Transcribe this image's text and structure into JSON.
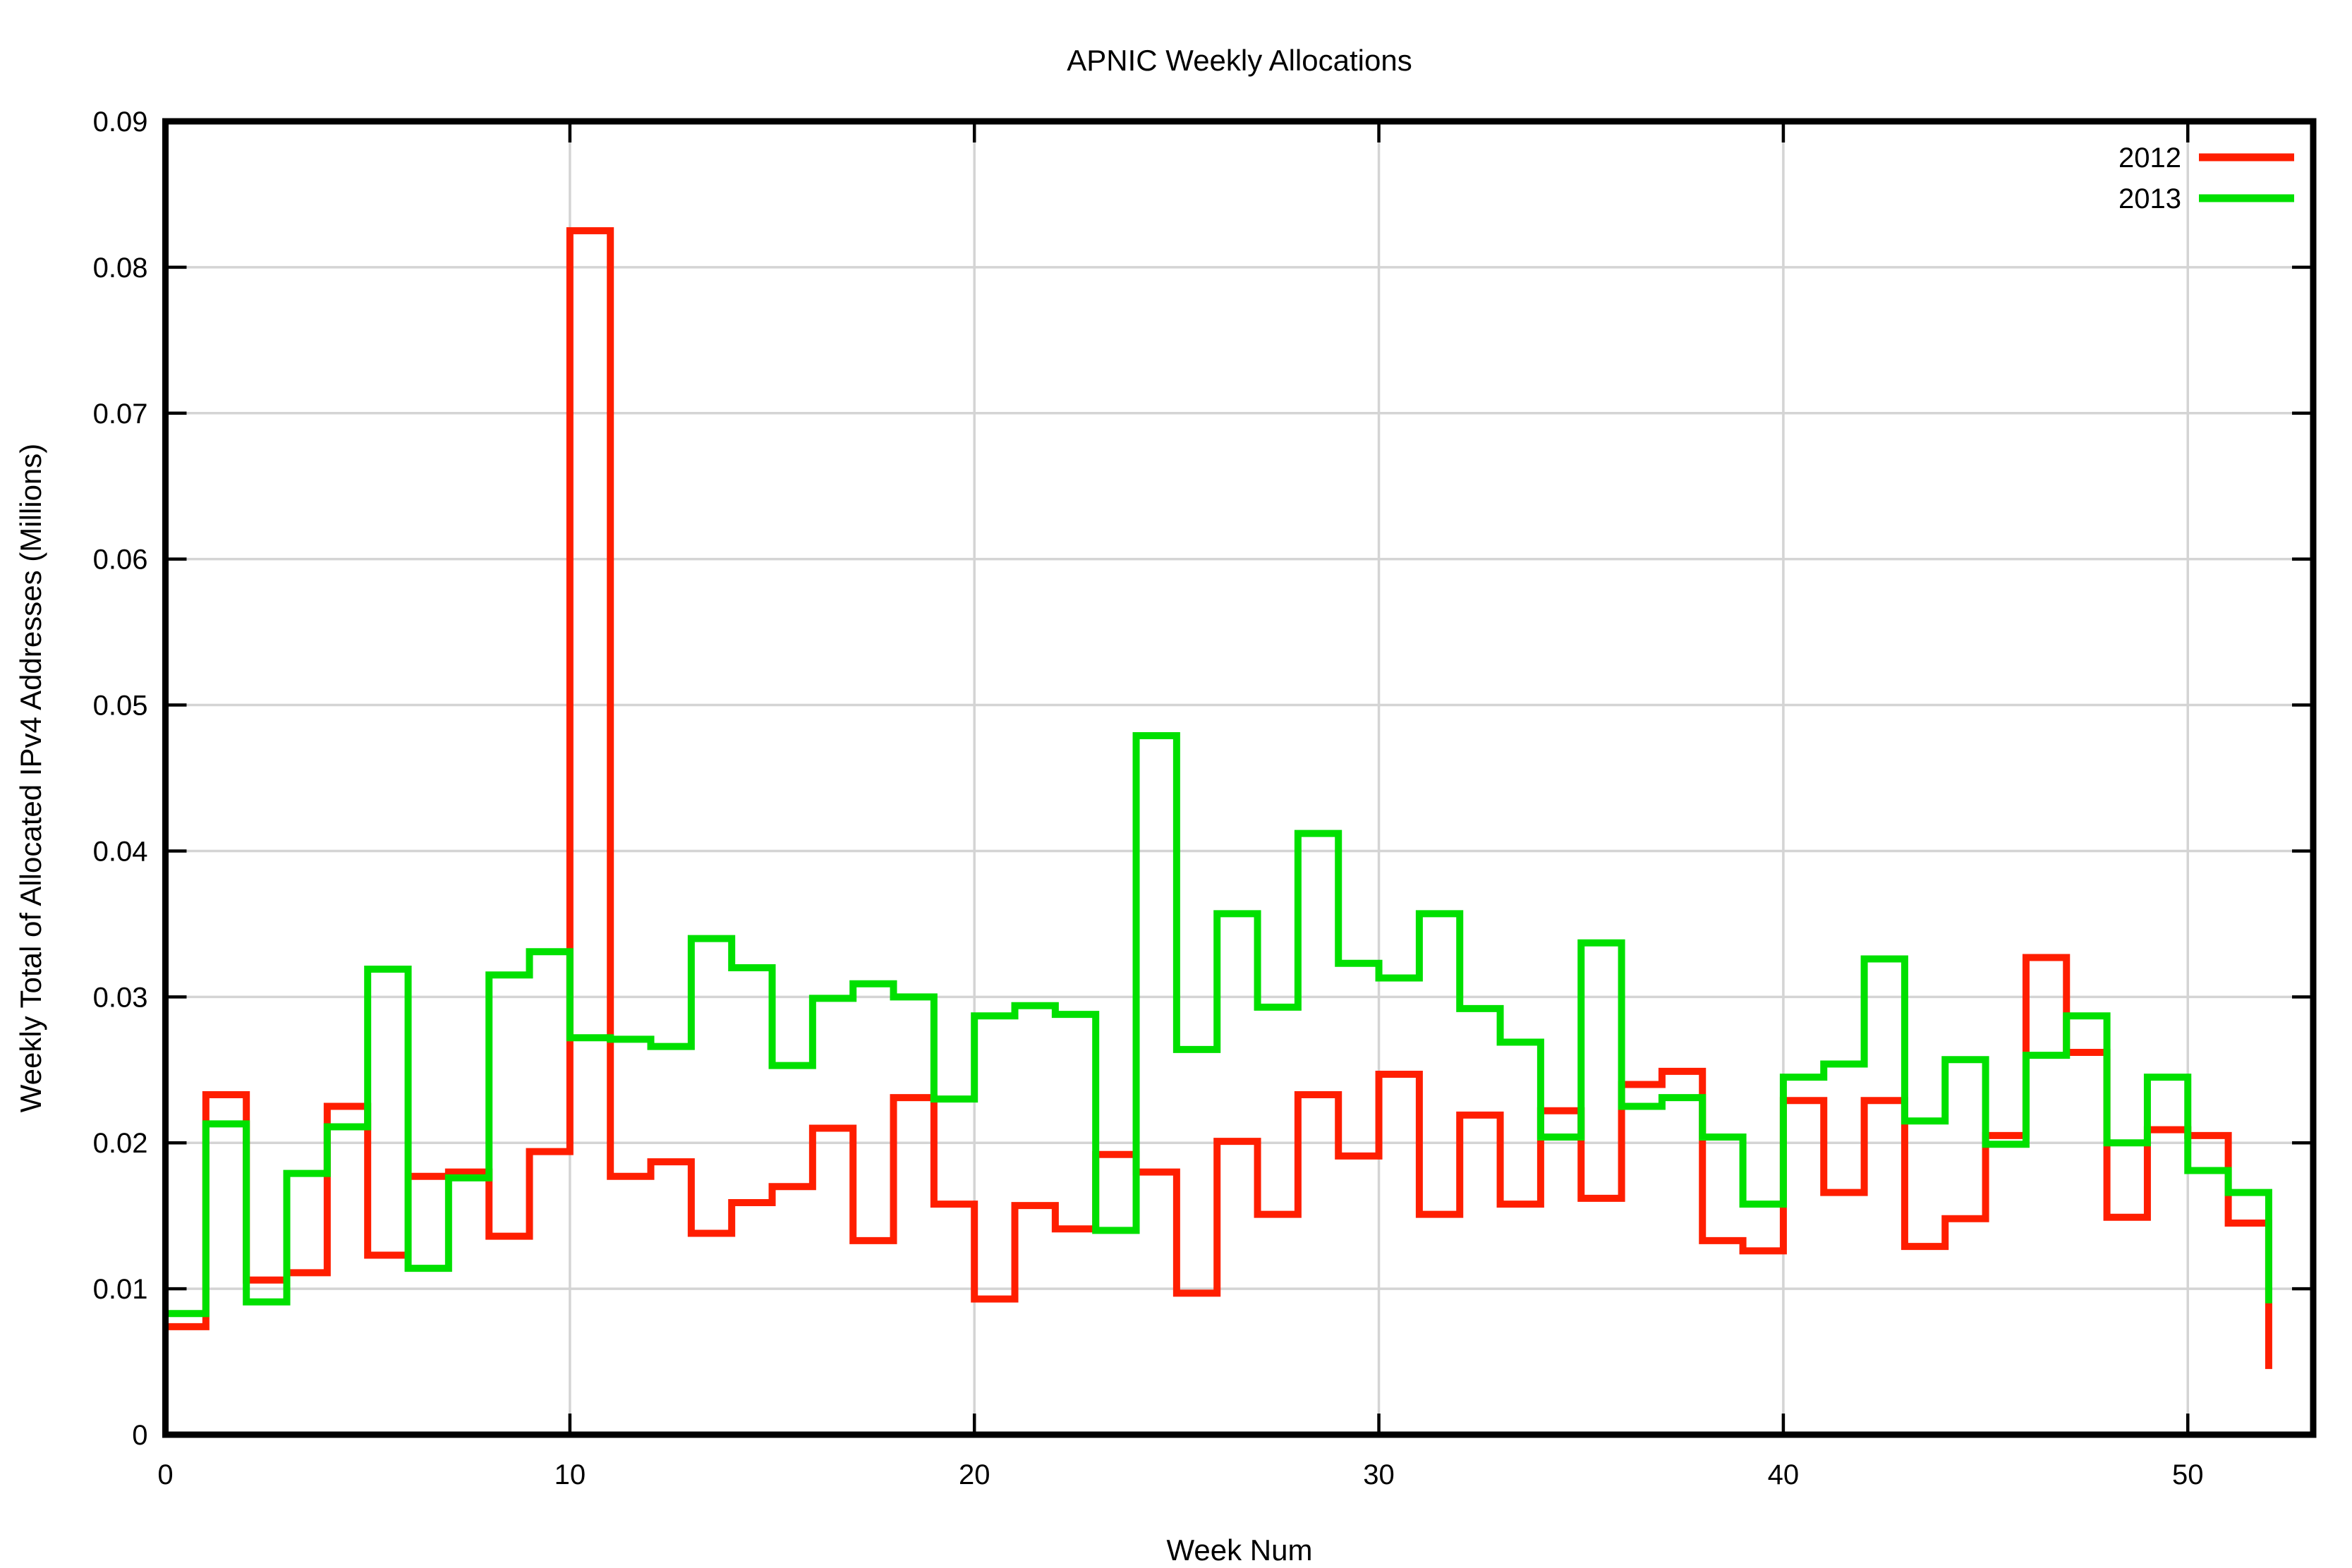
{
  "chart_data": {
    "type": "step",
    "title": "APNIC Weekly Allocations",
    "xlabel": "Week Num",
    "ylabel": "Weekly Total of Allocated IPv4 Addresses (Millions)",
    "xlim": [
      0,
      53.1
    ],
    "ylim": [
      0,
      0.09
    ],
    "grid": true,
    "legend_position": "top-right",
    "background_color": "#ffffff",
    "axis_color": "#000000",
    "grid_color": "#d4d4d4",
    "x_tick_values": [
      0,
      10,
      20,
      30,
      40,
      50
    ],
    "x_tick_labels": [
      "0",
      "10",
      "20",
      "30",
      "40",
      "50"
    ],
    "y_tick_values": [
      0,
      0.01,
      0.02,
      0.03,
      0.04,
      0.05,
      0.06,
      0.07,
      0.08,
      0.09
    ],
    "y_tick_labels": [
      "0",
      "0.01",
      "0.02",
      "0.03",
      "0.04",
      "0.05",
      "0.06",
      "0.07",
      "0.08",
      "0.09"
    ],
    "weeks": [
      0,
      1,
      2,
      3,
      4,
      5,
      6,
      7,
      8,
      9,
      10,
      11,
      12,
      13,
      14,
      15,
      16,
      17,
      18,
      19,
      20,
      21,
      22,
      23,
      24,
      25,
      26,
      27,
      28,
      29,
      30,
      31,
      32,
      33,
      34,
      35,
      36,
      37,
      38,
      39,
      40,
      41,
      42,
      43,
      44,
      45,
      46,
      47,
      48,
      49,
      50,
      51,
      52
    ],
    "series": [
      {
        "name": "2012",
        "color": "#ff1e00",
        "values": [
          0.0074,
          0.0233,
          0.0106,
          0.0111,
          0.0225,
          0.0123,
          0.0177,
          0.018,
          0.0136,
          0.0194,
          0.0825,
          0.0177,
          0.0187,
          0.0138,
          0.0159,
          0.017,
          0.021,
          0.0133,
          0.0231,
          0.0158,
          0.0093,
          0.0157,
          0.0141,
          0.0192,
          0.018,
          0.0097,
          0.0201,
          0.0151,
          0.0233,
          0.0191,
          0.0247,
          0.0151,
          0.0219,
          0.0158,
          0.0222,
          0.0162,
          0.024,
          0.0249,
          0.0133,
          0.0126,
          0.0229,
          0.0166,
          0.0229,
          0.0129,
          0.0148,
          0.0205,
          0.0327,
          0.0262,
          0.0149,
          0.0209,
          0.0205,
          0.0145,
          0.0045
        ]
      },
      {
        "name": "2013",
        "color": "#00e000",
        "values": [
          0.0083,
          0.0213,
          0.0091,
          0.0179,
          0.0211,
          0.0319,
          0.0114,
          0.0176,
          0.0315,
          0.0331,
          0.0272,
          0.0271,
          0.0266,
          0.034,
          0.032,
          0.0253,
          0.0299,
          0.0309,
          0.03,
          0.023,
          0.0287,
          0.0294,
          0.0288,
          0.014,
          0.0479,
          0.0264,
          0.0357,
          0.0293,
          0.0412,
          0.0323,
          0.0313,
          0.0357,
          0.0292,
          0.0269,
          0.0204,
          0.0337,
          0.0225,
          0.0231,
          0.0204,
          0.0158,
          0.0245,
          0.0254,
          0.0326,
          0.0215,
          0.0257,
          0.0199,
          0.026,
          0.0287,
          0.02,
          0.0245,
          0.0181,
          0.0166,
          0.009
        ]
      }
    ]
  }
}
